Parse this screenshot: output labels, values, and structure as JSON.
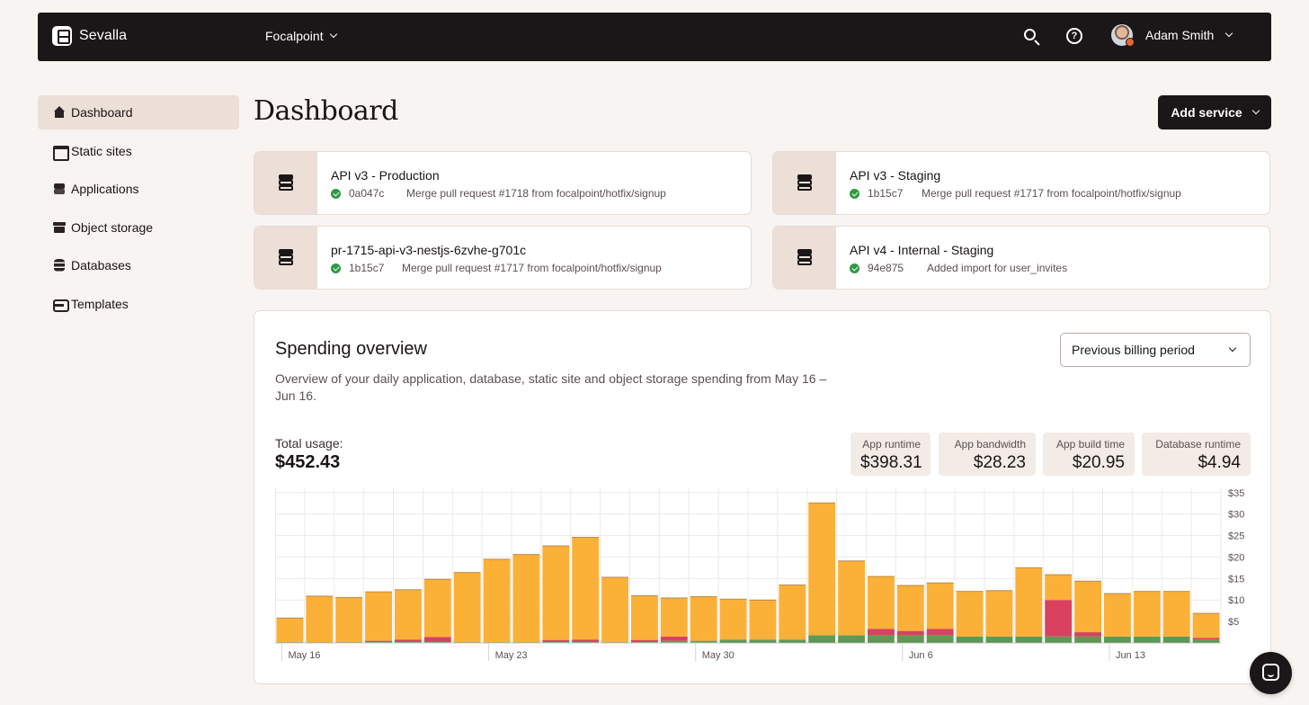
{
  "topbar": {
    "brand": "Sevalla",
    "project": "Focalpoint",
    "user_name": "Adam Smith"
  },
  "sidebar": {
    "items": [
      {
        "label": "Dashboard",
        "icon": "home-icon",
        "active": true
      },
      {
        "label": "Static sites",
        "icon": "web-icon"
      },
      {
        "label": "Applications",
        "icon": "layers-icon"
      },
      {
        "label": "Object storage",
        "icon": "archive-icon"
      },
      {
        "label": "Databases",
        "icon": "database-icon"
      },
      {
        "label": "Templates",
        "icon": "tray-icon"
      }
    ]
  },
  "main": {
    "title": "Dashboard",
    "add_service_label": "Add service"
  },
  "services": [
    {
      "name": "API v3 - Production",
      "hash": "0a047c",
      "message": "Merge pull request #1718 from focalpoint/hotfix/signup"
    },
    {
      "name": "API v3 - Staging",
      "hash": "1b15c7",
      "message": "Merge pull request #1717 from focalpoint/hotfix/signup"
    },
    {
      "name": "pr-1715-api-v3-nestjs-6zvhe-g701c",
      "hash": "1b15c7",
      "message": "Merge pull request #1717 from focalpoint/hotfix/signup"
    },
    {
      "name": "API v4 - Internal - Staging",
      "hash": "94e875",
      "message": "Added import for user_invites"
    }
  ],
  "spending": {
    "title": "Spending overview",
    "description": "Overview of your daily application, database, static site and object storage spending from May 16 – Jun 16.",
    "period": "Previous billing period",
    "total_label": "Total usage:",
    "total_value": "$452.43",
    "metrics": [
      {
        "label": "App runtime",
        "value": "$398.31"
      },
      {
        "label": "App bandwidth",
        "value": "$28.23"
      },
      {
        "label": "App build time",
        "value": "$20.95"
      },
      {
        "label": "Database runtime",
        "value": "$4.94"
      }
    ]
  },
  "colors": {
    "runtime": "#fbb038",
    "bandwidth": "#d9415f",
    "build": "#5f9a55",
    "database": "#3d7a3a"
  },
  "chart_data": {
    "type": "bar",
    "stacked": true,
    "x_tick_labels": [
      "May 16",
      "May 23",
      "May 30",
      "Jun 6",
      "Jun 13"
    ],
    "x_tick_indices": [
      1,
      8,
      15,
      22,
      29
    ],
    "y_tick_labels": [
      "$35",
      "$30",
      "$25",
      "$20",
      "$15",
      "$10",
      "$5"
    ],
    "y_tick_values": [
      35,
      30,
      25,
      20,
      15,
      10,
      5
    ],
    "ylim": [
      0,
      36
    ],
    "y_axis_side": "right",
    "grid": true,
    "series": [
      {
        "key": "database",
        "values": [
          0,
          0,
          0,
          0,
          0,
          0,
          0,
          0,
          0,
          0,
          0,
          0,
          0,
          0,
          0,
          0.3,
          0.3,
          0.3,
          0.3,
          0.3,
          0.3,
          0.3,
          0.3,
          0.3,
          0.3,
          0.3,
          0.3,
          0.3,
          0.3,
          0.3,
          0.3,
          0.3
        ]
      },
      {
        "key": "build",
        "values": [
          0.2,
          0.2,
          0.2,
          0.2,
          0.2,
          0.2,
          0.2,
          0.2,
          0.2,
          0.2,
          0.2,
          0.2,
          0.2,
          0.5,
          0.5,
          0.5,
          0.5,
          0.5,
          1.5,
          1.5,
          1.5,
          1.5,
          1.5,
          1.2,
          1.2,
          1.2,
          1.2,
          1.2,
          1.2,
          1.2,
          1.2,
          0.5
        ]
      },
      {
        "key": "bandwidth",
        "values": [
          0,
          0,
          0,
          0.3,
          0.6,
          1.2,
          0,
          0,
          0,
          0.5,
          0.6,
          0,
          0.5,
          1,
          0,
          0,
          0,
          0,
          0,
          0,
          1.5,
          1,
          1.5,
          0,
          0,
          0,
          8.5,
          1,
          0,
          0,
          0,
          0.4
        ]
      },
      {
        "key": "runtime",
        "values": [
          5.6,
          10.7,
          10.4,
          11.4,
          11.6,
          13.4,
          16.2,
          19.3,
          20.4,
          21.9,
          23.8,
          15.1,
          10.3,
          9.0,
          10.3,
          9.4,
          9.2,
          12.7,
          30.8,
          17.3,
          12.2,
          10.6,
          10.7,
          10.5,
          10.7,
          16.0,
          5.9,
          11.9,
          10.0,
          10.5,
          10.5,
          5.7
        ]
      }
    ]
  }
}
